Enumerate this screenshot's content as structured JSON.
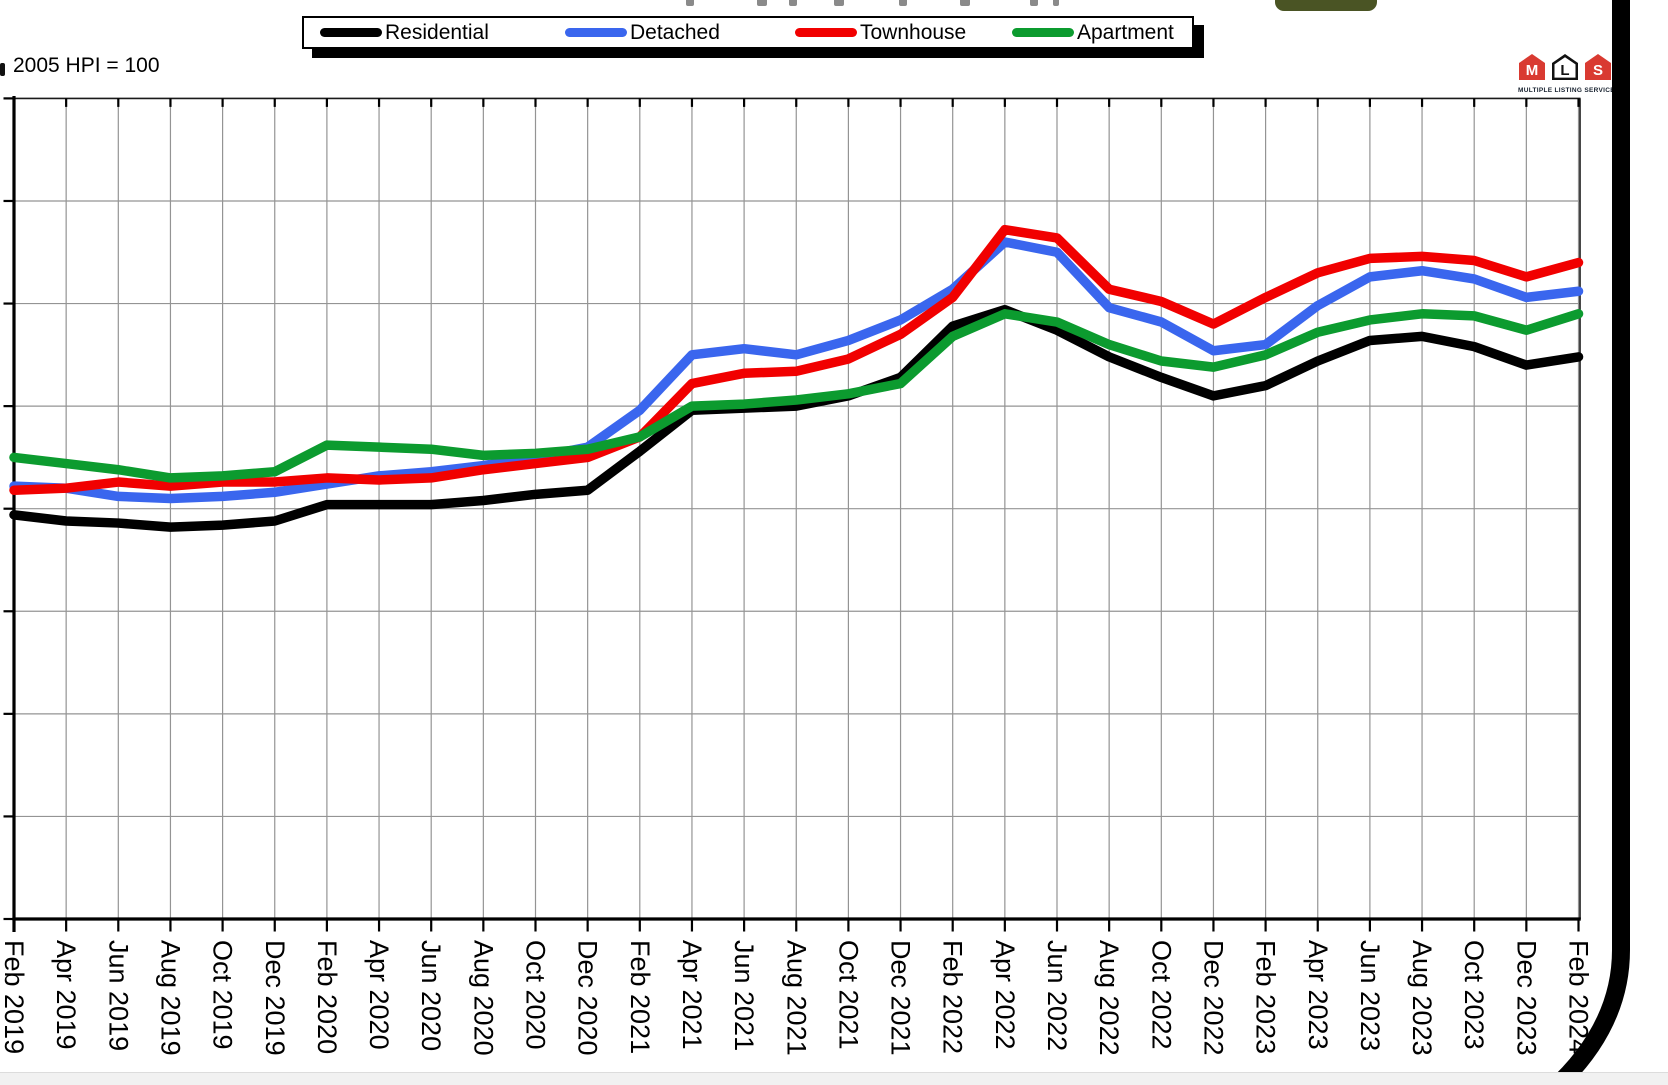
{
  "page": {
    "note": "2005 HPI = 100"
  },
  "legend": {
    "items": [
      {
        "label": "Residential",
        "color": "#000000"
      },
      {
        "label": "Detached",
        "color": "#3A66EE"
      },
      {
        "label": "Townhouse",
        "color": "#F10000"
      },
      {
        "label": "Apartment",
        "color": "#0C9B2F"
      }
    ]
  },
  "logo": {
    "letters": [
      "M",
      "L",
      "S"
    ],
    "caption": "MULTIPLE LISTING SERVICE®",
    "red": "#D93A31",
    "dark": "#111111"
  },
  "chart_data": {
    "type": "line",
    "title": "",
    "xlabel": "",
    "ylabel": "",
    "note": "2005 HPI = 100",
    "x_tick_labels": [
      "Feb 2019",
      "Apr 2019",
      "Jun 2019",
      "Aug 2019",
      "Oct 2019",
      "Dec 2019",
      "Feb 2020",
      "Apr 2020",
      "Jun 2020",
      "Aug 2020",
      "Oct 2020",
      "Dec 2020",
      "Feb 2021",
      "Apr 2021",
      "Jun 2021",
      "Aug 2021",
      "Oct 2021",
      "Dec 2021",
      "Feb 2022",
      "Apr 2022",
      "Jun 2022",
      "Aug 2022",
      "Oct 2022",
      "Dec 2022",
      "Feb 2023",
      "Apr 2023",
      "Jun 2023",
      "Aug 2023",
      "Oct 2023",
      "Dec 2023",
      "Feb 2024"
    ],
    "months_per_point": 2,
    "series": [
      {
        "name": "Residential",
        "color": "#000000",
        "values": [
          297,
          294,
          293,
          291,
          292,
          294,
          302,
          302,
          302,
          304,
          307,
          309,
          328,
          348,
          349,
          350,
          355,
          364,
          389,
          397,
          387,
          374,
          364,
          355,
          360,
          372,
          382,
          384,
          379,
          370,
          374
        ]
      },
      {
        "name": "Detached",
        "color": "#3A66EE",
        "values": [
          311,
          310,
          306,
          305,
          306,
          308,
          312,
          316,
          318,
          321,
          325,
          330,
          348,
          375,
          378,
          375,
          382,
          392,
          407,
          430,
          425,
          398,
          391,
          377,
          380,
          399,
          413,
          416,
          412,
          403,
          406
        ]
      },
      {
        "name": "Townhouse",
        "color": "#F10000",
        "values": [
          309,
          310,
          313,
          311,
          313,
          313,
          315,
          314,
          315,
          319,
          322,
          325,
          335,
          361,
          366,
          367,
          373,
          385,
          403,
          436,
          432,
          407,
          401,
          390,
          403,
          415,
          422,
          423,
          421,
          413,
          420
        ]
      },
      {
        "name": "Apartment",
        "color": "#0C9B2F",
        "values": [
          325,
          322,
          319,
          315,
          316,
          318,
          331,
          330,
          329,
          326,
          327,
          329,
          335,
          350,
          351,
          353,
          356,
          361,
          384,
          395,
          391,
          380,
          372,
          369,
          375,
          386,
          392,
          395,
          394,
          387,
          395
        ]
      }
    ],
    "ylim": [
      100,
      500
    ],
    "y_gridline_step": 50,
    "y_tick_labels_visible": false,
    "scale_note": "y-axis labels cropped out of view; values estimated from gridlines with 2005 HPI = 100 baseline",
    "grid": true,
    "legend_position": "top"
  }
}
